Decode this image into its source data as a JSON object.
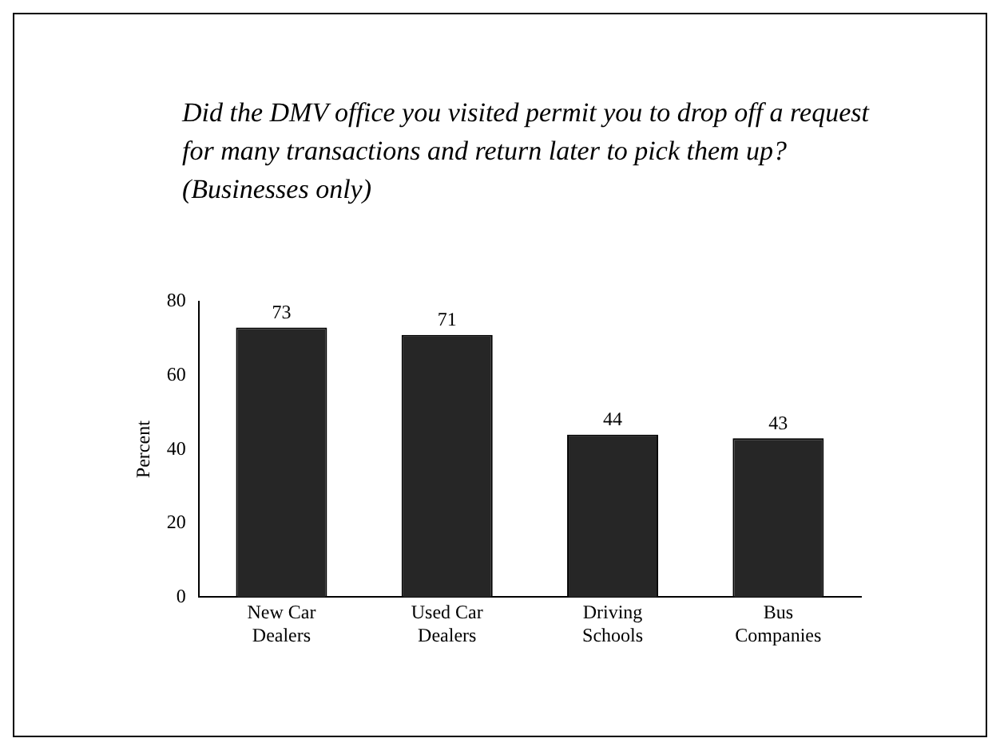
{
  "chart_data": {
    "type": "bar",
    "title": "Did the DMV office you visited permit you to drop off a request for many transactions and return later to pick them up? (Businesses only)",
    "ylabel": "Percent",
    "categories": [
      "New Car Dealers",
      "Used Car Dealers",
      "Driving Schools",
      "Bus Companies"
    ],
    "values": [
      73,
      71,
      44,
      43
    ],
    "color": "#262626",
    "ylim": [
      0,
      80
    ],
    "yticks": [
      0,
      20,
      40,
      60,
      80
    ],
    "grid": false,
    "legend": false,
    "data_labels": true
  }
}
